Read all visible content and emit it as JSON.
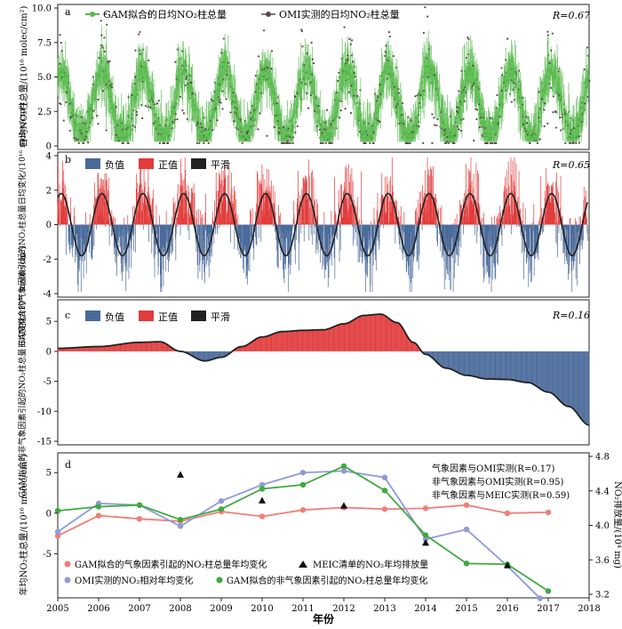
{
  "panel_labels": [
    "a",
    "b",
    "c",
    "d"
  ],
  "x_axis_label": "年份",
  "x_ticks": [
    "2005",
    "2006",
    "2007",
    "2008",
    "2009",
    "2010",
    "2011",
    "2012",
    "2013",
    "2014",
    "2015",
    "2016",
    "2017",
    "2018"
  ],
  "colors": {
    "gam_green": "#55b94a",
    "omi_dark": "#5a4a4a",
    "negative_blue": "#4a6a9a",
    "positive_red": "#e23c3c",
    "smooth_black": "#222222",
    "met_pink": "#ee7f7a",
    "omi_lavender": "#8f9bd6",
    "nonmet_green": "#3faa3f"
  },
  "chart_data": [
    {
      "panel": "a",
      "type": "scatter",
      "ylabel": "日均NO₂柱总量/(10¹⁶ molec/cm²)",
      "ylim": [
        0,
        10
      ],
      "yticks": [
        "0",
        "2.5",
        "5.0",
        "7.5",
        "10.0"
      ],
      "r_label": "R=0.67",
      "legend": [
        "GAM拟合的日均NO₂柱总量",
        "OMI实测的日均NO₂柱总量"
      ],
      "seasonal": {
        "mean": 2.9,
        "amplitude": 2.6,
        "peak_month": 1,
        "omi_spread": 2.2
      }
    },
    {
      "panel": "b",
      "type": "bar",
      "ylabel": "GAM拟合的气象因素引起的NO₂柱总量日均变化/(10¹⁶ molec/cm²)",
      "ylim": [
        -4,
        4
      ],
      "yticks": [
        "-4",
        "-2",
        "0",
        "2",
        "4"
      ],
      "r_label": "R=0.65",
      "legend": [
        "负值",
        "正值",
        "平滑"
      ],
      "seasonal": {
        "amplitude": 1.9,
        "peak_month": 1,
        "noise": 1.1
      }
    },
    {
      "panel": "c",
      "type": "bar",
      "ylabel": "GAM拟合的非气象因素引起的NO₂柱总量日均变化/(10¹⁶ molec/cm²)",
      "ylim": [
        -15,
        8
      ],
      "yticks": [
        "-15",
        "-10",
        "-5",
        "0",
        "5"
      ],
      "r_label": "R=0.16",
      "legend": [
        "负值",
        "正值",
        "平滑"
      ],
      "trend_points": [
        [
          2005,
          0.5
        ],
        [
          2006,
          0.8
        ],
        [
          2007,
          1.5
        ],
        [
          2007.5,
          1.6
        ],
        [
          2008,
          0
        ],
        [
          2008.6,
          -1.6
        ],
        [
          2009,
          -1.0
        ],
        [
          2009.5,
          0.8
        ],
        [
          2010,
          2.4
        ],
        [
          2010.5,
          3.3
        ],
        [
          2011,
          3.5
        ],
        [
          2011.5,
          3.6
        ],
        [
          2012,
          4.6
        ],
        [
          2012.5,
          6.0
        ],
        [
          2012.9,
          6.2
        ],
        [
          2013.3,
          4.8
        ],
        [
          2013.7,
          1.5
        ],
        [
          2014,
          -0.5
        ],
        [
          2014.5,
          -2.8
        ],
        [
          2015,
          -4.0
        ],
        [
          2015.5,
          -4.6
        ],
        [
          2016,
          -4.7
        ],
        [
          2016.5,
          -5.2
        ],
        [
          2017,
          -6.8
        ],
        [
          2017.5,
          -9.2
        ],
        [
          2018,
          -12.3
        ]
      ]
    },
    {
      "panel": "d",
      "type": "line",
      "ylabel_left": "年均NO₂柱总量/(10¹⁶ molec/cm²)",
      "ylabel_right": "NO₂排放量/(10⁴ mg)",
      "ylim_left": [
        -10,
        7
      ],
      "ylim_right": [
        3.2,
        4.8
      ],
      "yticks_left": [
        "-5",
        "0",
        "5"
      ],
      "yticks_right": [
        "3.2",
        "3.6",
        "4.0",
        "4.4",
        "4.8"
      ],
      "annotations": [
        "气象因素与OMI实测(R=0.17)",
        "非气象因素与OMI实测(R=0.95)",
        "非气象因素与MEIC实测(R=0.59)"
      ],
      "legend": [
        "GAM拟合的气象因素引起的NO₂柱总量年均变化",
        "MEIC清单的NO₂年均排放量",
        "OMI实测的NO₂相对年均变化",
        "GAM拟合的非气象因素引起的NO₂柱总量年均变化"
      ],
      "series": [
        {
          "name": "GAM拟合的气象因素引起的NO₂柱总量年均变化",
          "x": [
            2005,
            2006,
            2007,
            2008,
            2009,
            2010,
            2011,
            2012,
            2013,
            2014,
            2015,
            2016,
            2017
          ],
          "values": [
            -2.8,
            -0.3,
            -0.7,
            -1.0,
            0.2,
            -0.4,
            0.4,
            0.7,
            0.5,
            0.6,
            1.0,
            0.0,
            0.1
          ]
        },
        {
          "name": "OMI实测的NO₂相对年均变化",
          "x": [
            2005,
            2006,
            2007,
            2008,
            2009,
            2010,
            2011,
            2012,
            2013,
            2014,
            2015,
            2016,
            2016.8
          ],
          "values": [
            -2.3,
            1.2,
            1.0,
            -1.6,
            1.5,
            3.5,
            5.0,
            5.2,
            4.4,
            -3.2,
            -2.0,
            -6.5,
            -10.5
          ]
        },
        {
          "name": "GAM拟合的非气象因素引起的NO₂柱总量年均变化",
          "x": [
            2005,
            2006,
            2007,
            2008,
            2009,
            2010,
            2011,
            2012,
            2013,
            2014,
            2015,
            2016,
            2017
          ],
          "values": [
            0.3,
            0.8,
            1.0,
            -0.8,
            0.5,
            3.0,
            3.5,
            5.8,
            2.8,
            -2.7,
            -6.2,
            -6.3,
            -9.6
          ]
        },
        {
          "name": "MEIC清单的NO₂年均排放量",
          "x": [
            2008,
            2010,
            2012,
            2014,
            2016
          ],
          "values": [
            4.59,
            4.29,
            4.23,
            3.8,
            3.54
          ]
        }
      ]
    }
  ]
}
